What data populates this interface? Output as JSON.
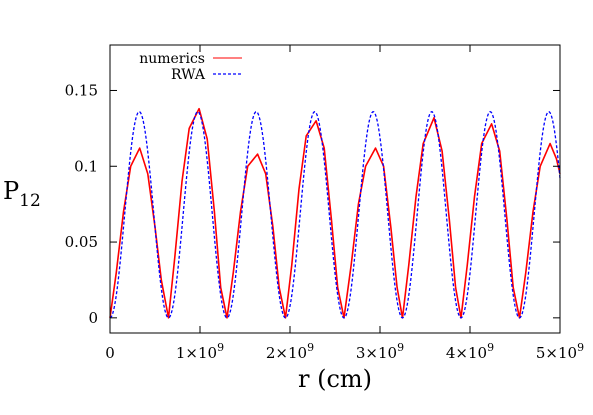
{
  "chart_data": {
    "type": "line",
    "xlabel": "r (cm)",
    "ylabel_main": "P",
    "ylabel_sub": "12",
    "xlim": [
      0,
      5000000000
    ],
    "ylim": [
      -0.01,
      0.18
    ],
    "grid": false,
    "legend_position": "top-left",
    "x_ticks": [
      {
        "value": 0,
        "mant": "0",
        "exp": ""
      },
      {
        "value": 1000000000,
        "mant": "1×10",
        "exp": "9"
      },
      {
        "value": 2000000000,
        "mant": "2×10",
        "exp": "9"
      },
      {
        "value": 3000000000,
        "mant": "3×10",
        "exp": "9"
      },
      {
        "value": 4000000000,
        "mant": "4×10",
        "exp": "9"
      },
      {
        "value": 5000000000,
        "mant": "5×10",
        "exp": "9"
      }
    ],
    "y_ticks": [
      {
        "value": 0,
        "label": "0"
      },
      {
        "value": 0.05,
        "label": "0.05"
      },
      {
        "value": 0.1,
        "label": "0.1"
      },
      {
        "value": 0.15,
        "label": "0.15"
      }
    ],
    "series": [
      {
        "name": "numerics",
        "color": "#ff0000",
        "style": "solid",
        "x": [
          0,
          70000000,
          150000000,
          230000000,
          330000000,
          420000000,
          500000000,
          570000000,
          650000000,
          720000000,
          800000000,
          880000000,
          990000000,
          1080000000,
          1160000000,
          1230000000,
          1300000000,
          1370000000,
          1450000000,
          1530000000,
          1640000000,
          1730000000,
          1810000000,
          1880000000,
          1950000000,
          2020000000,
          2100000000,
          2180000000,
          2290000000,
          2380000000,
          2460000000,
          2530000000,
          2600000000,
          2680000000,
          2760000000,
          2840000000,
          2950000000,
          3040000000,
          3120000000,
          3190000000,
          3250000000,
          3320000000,
          3400000000,
          3480000000,
          3600000000,
          3690000000,
          3770000000,
          3840000000,
          3900000000,
          3970000000,
          4050000000,
          4130000000,
          4240000000,
          4330000000,
          4410000000,
          4480000000,
          4550000000,
          4620000000,
          4700000000,
          4780000000,
          4890000000,
          4960000000,
          5000000000
        ],
        "y": [
          0,
          0.03,
          0.07,
          0.1,
          0.112,
          0.095,
          0.06,
          0.025,
          0,
          0.04,
          0.09,
          0.125,
          0.138,
          0.118,
          0.07,
          0.02,
          0,
          0.03,
          0.07,
          0.1,
          0.108,
          0.095,
          0.06,
          0.02,
          0,
          0.035,
          0.085,
          0.12,
          0.13,
          0.112,
          0.065,
          0.02,
          0,
          0.035,
          0.075,
          0.1,
          0.112,
          0.1,
          0.06,
          0.02,
          0,
          0.035,
          0.08,
          0.115,
          0.132,
          0.11,
          0.065,
          0.02,
          0,
          0.035,
          0.08,
          0.115,
          0.128,
          0.11,
          0.065,
          0.02,
          0,
          0.03,
          0.07,
          0.1,
          0.115,
          0.105,
          0.095
        ]
      },
      {
        "name": "RWA",
        "color": "#0000ff",
        "style": "dashed",
        "amplitude": 0.136,
        "period": 650000000
      }
    ]
  }
}
